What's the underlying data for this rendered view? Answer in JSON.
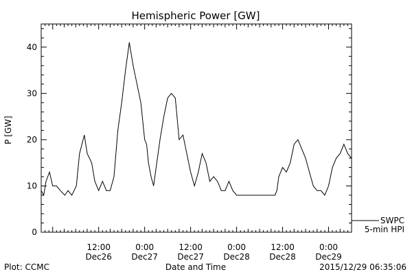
{
  "chart_data": {
    "type": "line",
    "title": "Hemispheric Power [GW]",
    "ylabel": "P [GW]",
    "xlabel": "Date and Time",
    "ylim": [
      0,
      45
    ],
    "xlim": [
      "2015-12-25T21:00",
      "2015-12-29T06:00"
    ],
    "y_ticks": [
      0,
      10,
      20,
      30,
      40
    ],
    "x_ticks": [
      {
        "x": "2015-12-26T12:00",
        "time": "12:00",
        "date": "Dec26"
      },
      {
        "x": "2015-12-27T00:00",
        "time": "0:00",
        "date": "Dec27"
      },
      {
        "x": "2015-12-27T12:00",
        "time": "12:00",
        "date": "Dec27"
      },
      {
        "x": "2015-12-28T00:00",
        "time": "0:00",
        "date": "Dec28"
      },
      {
        "x": "2015-12-28T12:00",
        "time": "12:00",
        "date": "Dec28"
      },
      {
        "x": "2015-12-29T00:00",
        "time": "0:00",
        "date": "Dec29"
      }
    ],
    "series": [
      {
        "legend": [
          "SWPC",
          "5-min HPI"
        ],
        "color": "#000000",
        "x": [
          "2015-12-25T21:00",
          "2015-12-25T21:40",
          "2015-12-25T22:15",
          "2015-12-25T23:10",
          "2015-12-26T00:00",
          "2015-12-26T01:00",
          "2015-12-26T02:00",
          "2015-12-26T03:10",
          "2015-12-26T04:00",
          "2015-12-26T05:00",
          "2015-12-26T06:10",
          "2015-12-26T07:00",
          "2015-12-26T08:15",
          "2015-12-26T09:00",
          "2015-12-26T10:10",
          "2015-12-26T11:00",
          "2015-12-26T12:00",
          "2015-12-26T13:00",
          "2015-12-26T14:00",
          "2015-12-26T15:00",
          "2015-12-26T16:00",
          "2015-12-26T17:00",
          "2015-12-26T18:00",
          "2015-12-26T19:00",
          "2015-12-26T20:00",
          "2015-12-26T21:00",
          "2015-12-26T22:00",
          "2015-12-26T22:30",
          "2015-12-26T23:00",
          "2015-12-26T23:30",
          "2015-12-27T00:00",
          "2015-12-27T00:30",
          "2015-12-27T01:00",
          "2015-12-27T01:40",
          "2015-12-27T02:20",
          "2015-12-27T03:00",
          "2015-12-27T04:00",
          "2015-12-27T05:00",
          "2015-12-27T06:00",
          "2015-12-27T07:00",
          "2015-12-27T08:00",
          "2015-12-27T09:00",
          "2015-12-27T10:00",
          "2015-12-27T11:00",
          "2015-12-27T12:00",
          "2015-12-27T13:00",
          "2015-12-27T14:00",
          "2015-12-27T15:00",
          "2015-12-27T16:00",
          "2015-12-27T17:00",
          "2015-12-27T18:00",
          "2015-12-27T19:00",
          "2015-12-27T20:00",
          "2015-12-27T21:00",
          "2015-12-27T22:00",
          "2015-12-27T23:00",
          "2015-12-28T00:00",
          "2015-12-28T02:00",
          "2015-12-28T04:00",
          "2015-12-28T06:00",
          "2015-12-28T08:00",
          "2015-12-28T10:00",
          "2015-12-28T10:30",
          "2015-12-28T11:00",
          "2015-12-28T12:00",
          "2015-12-28T13:00",
          "2015-12-28T14:00",
          "2015-12-28T15:00",
          "2015-12-28T16:00",
          "2015-12-28T17:00",
          "2015-12-28T18:00",
          "2015-12-28T19:00",
          "2015-12-28T20:00",
          "2015-12-28T21:00",
          "2015-12-28T22:00",
          "2015-12-28T23:00",
          "2015-12-29T00:00",
          "2015-12-29T01:00",
          "2015-12-29T02:00",
          "2015-12-29T03:00",
          "2015-12-29T04:00",
          "2015-12-29T05:00",
          "2015-12-29T06:00"
        ],
        "y": [
          9,
          8,
          11,
          13,
          10,
          10,
          9,
          8,
          9,
          8,
          10,
          17,
          21,
          17,
          15,
          11,
          9,
          11,
          9,
          9,
          12,
          22,
          28,
          35,
          41,
          36,
          32,
          30,
          28,
          24,
          20,
          19,
          15,
          12,
          10,
          14,
          20,
          25,
          29,
          30,
          29,
          20,
          21,
          17,
          13,
          10,
          13,
          17,
          15,
          11,
          12,
          11,
          9,
          9,
          11,
          9,
          8,
          8,
          8,
          8,
          8,
          8,
          9,
          12,
          14,
          13,
          15,
          19,
          20,
          18,
          16,
          13,
          10,
          9,
          9,
          8,
          10,
          14,
          16,
          17,
          19,
          17,
          16
        ]
      }
    ]
  },
  "footer": {
    "left": "Plot: CCMC",
    "right": "2015/12/29 06:35:06"
  }
}
